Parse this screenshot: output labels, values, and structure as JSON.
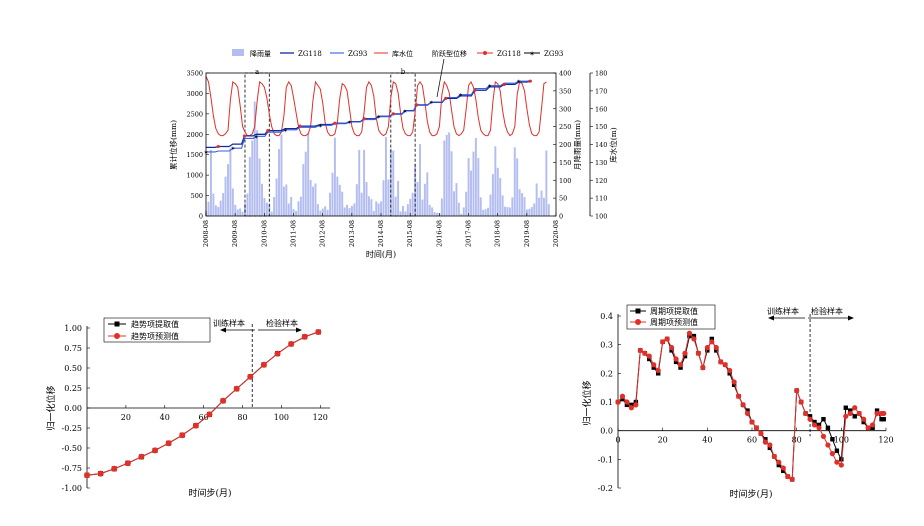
{
  "chart_data": [
    {
      "type": "line",
      "xlabel": "时间(月)",
      "ylabel_left": "累计位移(mm)",
      "ylabel_right1": "月降雨量(mm)",
      "ylabel_right2": "库水位(m)",
      "x_tick_labels": [
        "2008-08",
        "2009-08",
        "2010-08",
        "2011-08",
        "2012-08",
        "2013-08",
        "2014-08",
        "2015-08",
        "2016-08",
        "2017-08",
        "2018-08",
        "2019-08",
        "2020-08"
      ],
      "ylim_left": [
        0,
        3500
      ],
      "left_ticks": [
        "0",
        "500",
        "1000",
        "1500",
        "2000",
        "2500",
        "3000",
        "3500"
      ],
      "ylim_rain": [
        0,
        400
      ],
      "rain_ticks": [
        "0",
        "50",
        "100",
        "150",
        "200",
        "250",
        "300",
        "350",
        "400"
      ],
      "ylim_level": [
        100,
        180
      ],
      "level_ticks": [
        "100",
        "110",
        "120",
        "130",
        "140",
        "150",
        "160",
        "170",
        "180"
      ],
      "legend": [
        "降雨量",
        "ZG118",
        "ZG93",
        "库水位"
      ],
      "legend2": [
        "ZG118",
        "ZG93"
      ],
      "legend2_title": "阶跃型位移",
      "annotations": [
        {
          "label": "a",
          "x_start": "2009-12",
          "x_end": "2010-10"
        },
        {
          "label": "b",
          "x_start": "2014-12",
          "x_end": "2015-10"
        }
      ],
      "colors": {
        "rain": "#b3bdf0",
        "zg118": "#102a9c",
        "zg93": "#3a5ee0",
        "level": "#e0302a",
        "step": "#000000"
      },
      "start_year": 2008,
      "start_month": 8,
      "reservoir_level": [
        178,
        175,
        166,
        156,
        149,
        146,
        145,
        145,
        146,
        148,
        165,
        175,
        174,
        172,
        162,
        150,
        147,
        145,
        145,
        146,
        150,
        164,
        175,
        174,
        172,
        166,
        157,
        150,
        146,
        145,
        145,
        147,
        156,
        172,
        175,
        173,
        166,
        158,
        150,
        146,
        145,
        145,
        146,
        150,
        165,
        175,
        173,
        171,
        163,
        152,
        147,
        145,
        145,
        146,
        152,
        166,
        174,
        173,
        170,
        160,
        150,
        146,
        145,
        145,
        147,
        158,
        172,
        175,
        173,
        167,
        155,
        148,
        146,
        145,
        146,
        150,
        166,
        175,
        174,
        169,
        158,
        149,
        146,
        145,
        145,
        147,
        158,
        173,
        175,
        173,
        164,
        153,
        147,
        145,
        145,
        146,
        150,
        168,
        175,
        173,
        169,
        159,
        150,
        146,
        145,
        146,
        148,
        160,
        173,
        175,
        172,
        165,
        155,
        148,
        146,
        145,
        145,
        148,
        164,
        175,
        174,
        170,
        159,
        151,
        147,
        145,
        146,
        150,
        168,
        175,
        174,
        170,
        160,
        151,
        146,
        145,
        145,
        147,
        160,
        174,
        175
      ],
      "rainfall": [
        15,
        40,
        185,
        63,
        30,
        25,
        43,
        64,
        110,
        145,
        189,
        77,
        31,
        18,
        21,
        12,
        35,
        63,
        165,
        211,
        320,
        240,
        161,
        90,
        50,
        37,
        33,
        12,
        53,
        105,
        187,
        228,
        82,
        88,
        35,
        53,
        19,
        14,
        41,
        54,
        145,
        180,
        232,
        101,
        82,
        91,
        33,
        15,
        21,
        27,
        17,
        65,
        121,
        219,
        110,
        87,
        68,
        24,
        31,
        22,
        28,
        35,
        89,
        185,
        65,
        185,
        95,
        55,
        47,
        14,
        41,
        35,
        41,
        100,
        221,
        102,
        188,
        183,
        54,
        98,
        13,
        28,
        13,
        33,
        48,
        65,
        145,
        95,
        201,
        46,
        90,
        122,
        31,
        24,
        11,
        9,
        8,
        49,
        211,
        227,
        234,
        181,
        69,
        92,
        37,
        6,
        24,
        68,
        162,
        127,
        180,
        218,
        162,
        52,
        17,
        19,
        23,
        60,
        117,
        195,
        135,
        106,
        58,
        26,
        25,
        24,
        52,
        192,
        161,
        75,
        64,
        53,
        18,
        20,
        25,
        35,
        91,
        51,
        71,
        51,
        183,
        33
      ],
      "zg118": [
        [
          2008.58,
          1680
        ],
        [
          2009.0,
          1700
        ],
        [
          2009.5,
          1760
        ],
        [
          2009.9,
          1960
        ],
        [
          2010.3,
          2000
        ],
        [
          2010.7,
          2090
        ],
        [
          2011.3,
          2140
        ],
        [
          2011.8,
          2200
        ],
        [
          2012.5,
          2240
        ],
        [
          2013.0,
          2270
        ],
        [
          2013.5,
          2310
        ],
        [
          2014.0,
          2380
        ],
        [
          2014.5,
          2440
        ],
        [
          2015.0,
          2500
        ],
        [
          2015.4,
          2580
        ],
        [
          2015.8,
          2720
        ],
        [
          2016.3,
          2780
        ],
        [
          2016.8,
          2880
        ],
        [
          2017.3,
          2940
        ],
        [
          2017.8,
          3080
        ],
        [
          2018.3,
          3160
        ],
        [
          2018.8,
          3220
        ],
        [
          2019.3,
          3280
        ],
        [
          2019.7,
          3300
        ]
      ],
      "zg93": [
        [
          2008.58,
          1570
        ],
        [
          2009.0,
          1590
        ],
        [
          2009.5,
          1660
        ],
        [
          2009.9,
          1900
        ],
        [
          2010.3,
          1950
        ],
        [
          2010.7,
          2050
        ],
        [
          2011.3,
          2110
        ],
        [
          2011.8,
          2170
        ],
        [
          2012.5,
          2220
        ],
        [
          2013.0,
          2260
        ],
        [
          2013.5,
          2300
        ],
        [
          2014.0,
          2360
        ],
        [
          2014.5,
          2430
        ],
        [
          2015.0,
          2490
        ],
        [
          2015.4,
          2570
        ],
        [
          2015.8,
          2710
        ],
        [
          2016.3,
          2790
        ],
        [
          2016.8,
          2900
        ],
        [
          2017.3,
          2970
        ],
        [
          2017.8,
          3120
        ],
        [
          2018.3,
          3190
        ],
        [
          2018.8,
          3250
        ],
        [
          2019.3,
          3300
        ],
        [
          2019.7,
          3320
        ]
      ]
    },
    {
      "type": "line",
      "xlabel": "时间步(月)",
      "ylabel": "归一化位移",
      "xlim": [
        0,
        125
      ],
      "ylim": [
        -1.0,
        1.0
      ],
      "x_ticks": [
        20,
        40,
        60,
        80,
        100,
        120
      ],
      "y_ticks": [
        "1.00",
        "0.75",
        "0.50",
        "0.25",
        "0.00",
        "-0.25",
        "-0.50",
        "-0.75",
        "-1.00"
      ],
      "divider_x": 85,
      "train_label": "训练样本",
      "test_label": "检验样本",
      "series": [
        {
          "name": "趋势项提取值",
          "color": "#000000",
          "marker": "square",
          "x": [
            0,
            7,
            14,
            21,
            28,
            35,
            42,
            49,
            56,
            63,
            70,
            77,
            84,
            91,
            98,
            105,
            112,
            119
          ],
          "values": [
            -0.84,
            -0.82,
            -0.76,
            -0.69,
            -0.61,
            -0.53,
            -0.44,
            -0.34,
            -0.22,
            -0.08,
            0.09,
            0.24,
            0.39,
            0.54,
            0.68,
            0.8,
            0.89,
            0.95
          ]
        },
        {
          "name": "趋势项预测值",
          "color": "#e0302a",
          "marker": "circle",
          "x": [
            0,
            7,
            14,
            21,
            28,
            35,
            42,
            49,
            56,
            63,
            70,
            77,
            84,
            91,
            98,
            105,
            112,
            119
          ],
          "values": [
            -0.84,
            -0.82,
            -0.76,
            -0.69,
            -0.61,
            -0.53,
            -0.44,
            -0.34,
            -0.22,
            -0.08,
            0.09,
            0.24,
            0.39,
            0.54,
            0.68,
            0.8,
            0.89,
            0.95
          ]
        }
      ]
    },
    {
      "type": "line",
      "xlabel": "时间步(月)",
      "ylabel": "归一化位移",
      "xlim": [
        0,
        120
      ],
      "ylim": [
        -0.2,
        0.4
      ],
      "x_ticks": [
        "0",
        "20",
        "40",
        "60",
        "80",
        "100",
        "120"
      ],
      "y_ticks": [
        "0.4",
        "0.3",
        "0.2",
        "0.1",
        "0.0",
        "-0.1",
        "-0.2"
      ],
      "divider_x": 86,
      "train_label": "训练样本",
      "test_label": "检验样本",
      "series": [
        {
          "name": "周期项提取值",
          "color": "#000000",
          "marker": "square",
          "x": [
            0,
            2,
            4,
            6,
            8,
            10,
            12,
            14,
            16,
            18,
            20,
            22,
            24,
            26,
            28,
            30,
            32,
            34,
            36,
            38,
            40,
            42,
            44,
            46,
            48,
            50,
            52,
            54,
            56,
            58,
            60,
            62,
            64,
            66,
            68,
            70,
            72,
            74,
            76,
            78,
            80,
            82,
            84,
            86,
            88,
            90,
            92,
            94,
            96,
            98,
            100,
            102,
            104,
            106,
            108,
            110,
            112,
            114,
            116,
            118,
            119
          ],
          "values": [
            0.1,
            0.11,
            0.09,
            0.09,
            0.1,
            0.28,
            0.27,
            0.25,
            0.22,
            0.2,
            0.31,
            0.32,
            0.28,
            0.24,
            0.22,
            0.26,
            0.33,
            0.33,
            0.27,
            0.22,
            0.28,
            0.32,
            0.28,
            0.24,
            0.23,
            0.2,
            0.16,
            0.12,
            0.09,
            0.07,
            0.03,
            0.01,
            -0.01,
            -0.03,
            -0.06,
            -0.09,
            -0.12,
            -0.14,
            -0.16,
            -0.17,
            0.14,
            0.1,
            0.06,
            0.05,
            0.03,
            0.02,
            0.04,
            0.01,
            -0.03,
            -0.07,
            -0.1,
            0.08,
            0.07,
            0.05,
            0.06,
            0.03,
            0.01,
            0.01,
            0.07,
            0.04,
            0.04
          ]
        },
        {
          "name": "周期项预测值",
          "color": "#e0302a",
          "marker": "circle",
          "x": [
            0,
            2,
            4,
            6,
            8,
            10,
            12,
            14,
            16,
            18,
            20,
            22,
            24,
            26,
            28,
            30,
            32,
            34,
            36,
            38,
            40,
            42,
            44,
            46,
            48,
            50,
            52,
            54,
            56,
            58,
            60,
            62,
            64,
            66,
            68,
            70,
            72,
            74,
            76,
            78,
            80,
            82,
            84,
            86,
            88,
            90,
            92,
            94,
            96,
            98,
            100,
            102,
            104,
            106,
            108,
            110,
            112,
            114,
            116,
            118,
            119
          ],
          "values": [
            0.1,
            0.12,
            0.1,
            0.08,
            0.09,
            0.28,
            0.27,
            0.26,
            0.23,
            0.21,
            0.31,
            0.32,
            0.29,
            0.25,
            0.23,
            0.27,
            0.34,
            0.32,
            0.27,
            0.22,
            0.29,
            0.31,
            0.29,
            0.24,
            0.23,
            0.21,
            0.17,
            0.12,
            0.09,
            0.06,
            0.03,
            0.01,
            -0.01,
            -0.04,
            -0.05,
            -0.09,
            -0.11,
            -0.13,
            -0.16,
            -0.17,
            0.14,
            0.1,
            0.06,
            0.04,
            0.02,
            0.01,
            -0.02,
            -0.05,
            -0.08,
            -0.11,
            -0.12,
            0.05,
            0.06,
            0.08,
            0.06,
            0.04,
            0.01,
            0.02,
            0.06,
            0.06,
            0.06
          ]
        }
      ]
    }
  ]
}
